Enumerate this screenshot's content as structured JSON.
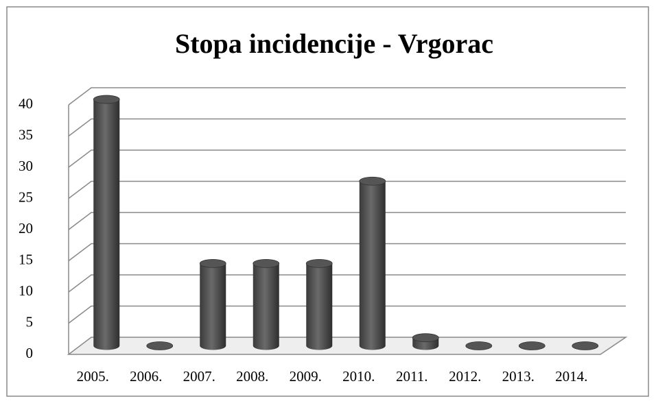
{
  "chart_data": {
    "type": "bar",
    "title": "Stopa incidencije - Vrgorac",
    "categories": [
      "2005.",
      "2006.",
      "2007.",
      "2008.",
      "2009.",
      "2010.",
      "2011.",
      "2012.",
      "2013.",
      "2014."
    ],
    "values": [
      39.5,
      0,
      13.2,
      13.2,
      13.2,
      26.4,
      1.3,
      0,
      0,
      0
    ],
    "color": "#555555",
    "ylim": [
      0,
      40
    ],
    "yticks": [
      0,
      5,
      10,
      15,
      20,
      25,
      30,
      35,
      40
    ],
    "grid": true
  }
}
